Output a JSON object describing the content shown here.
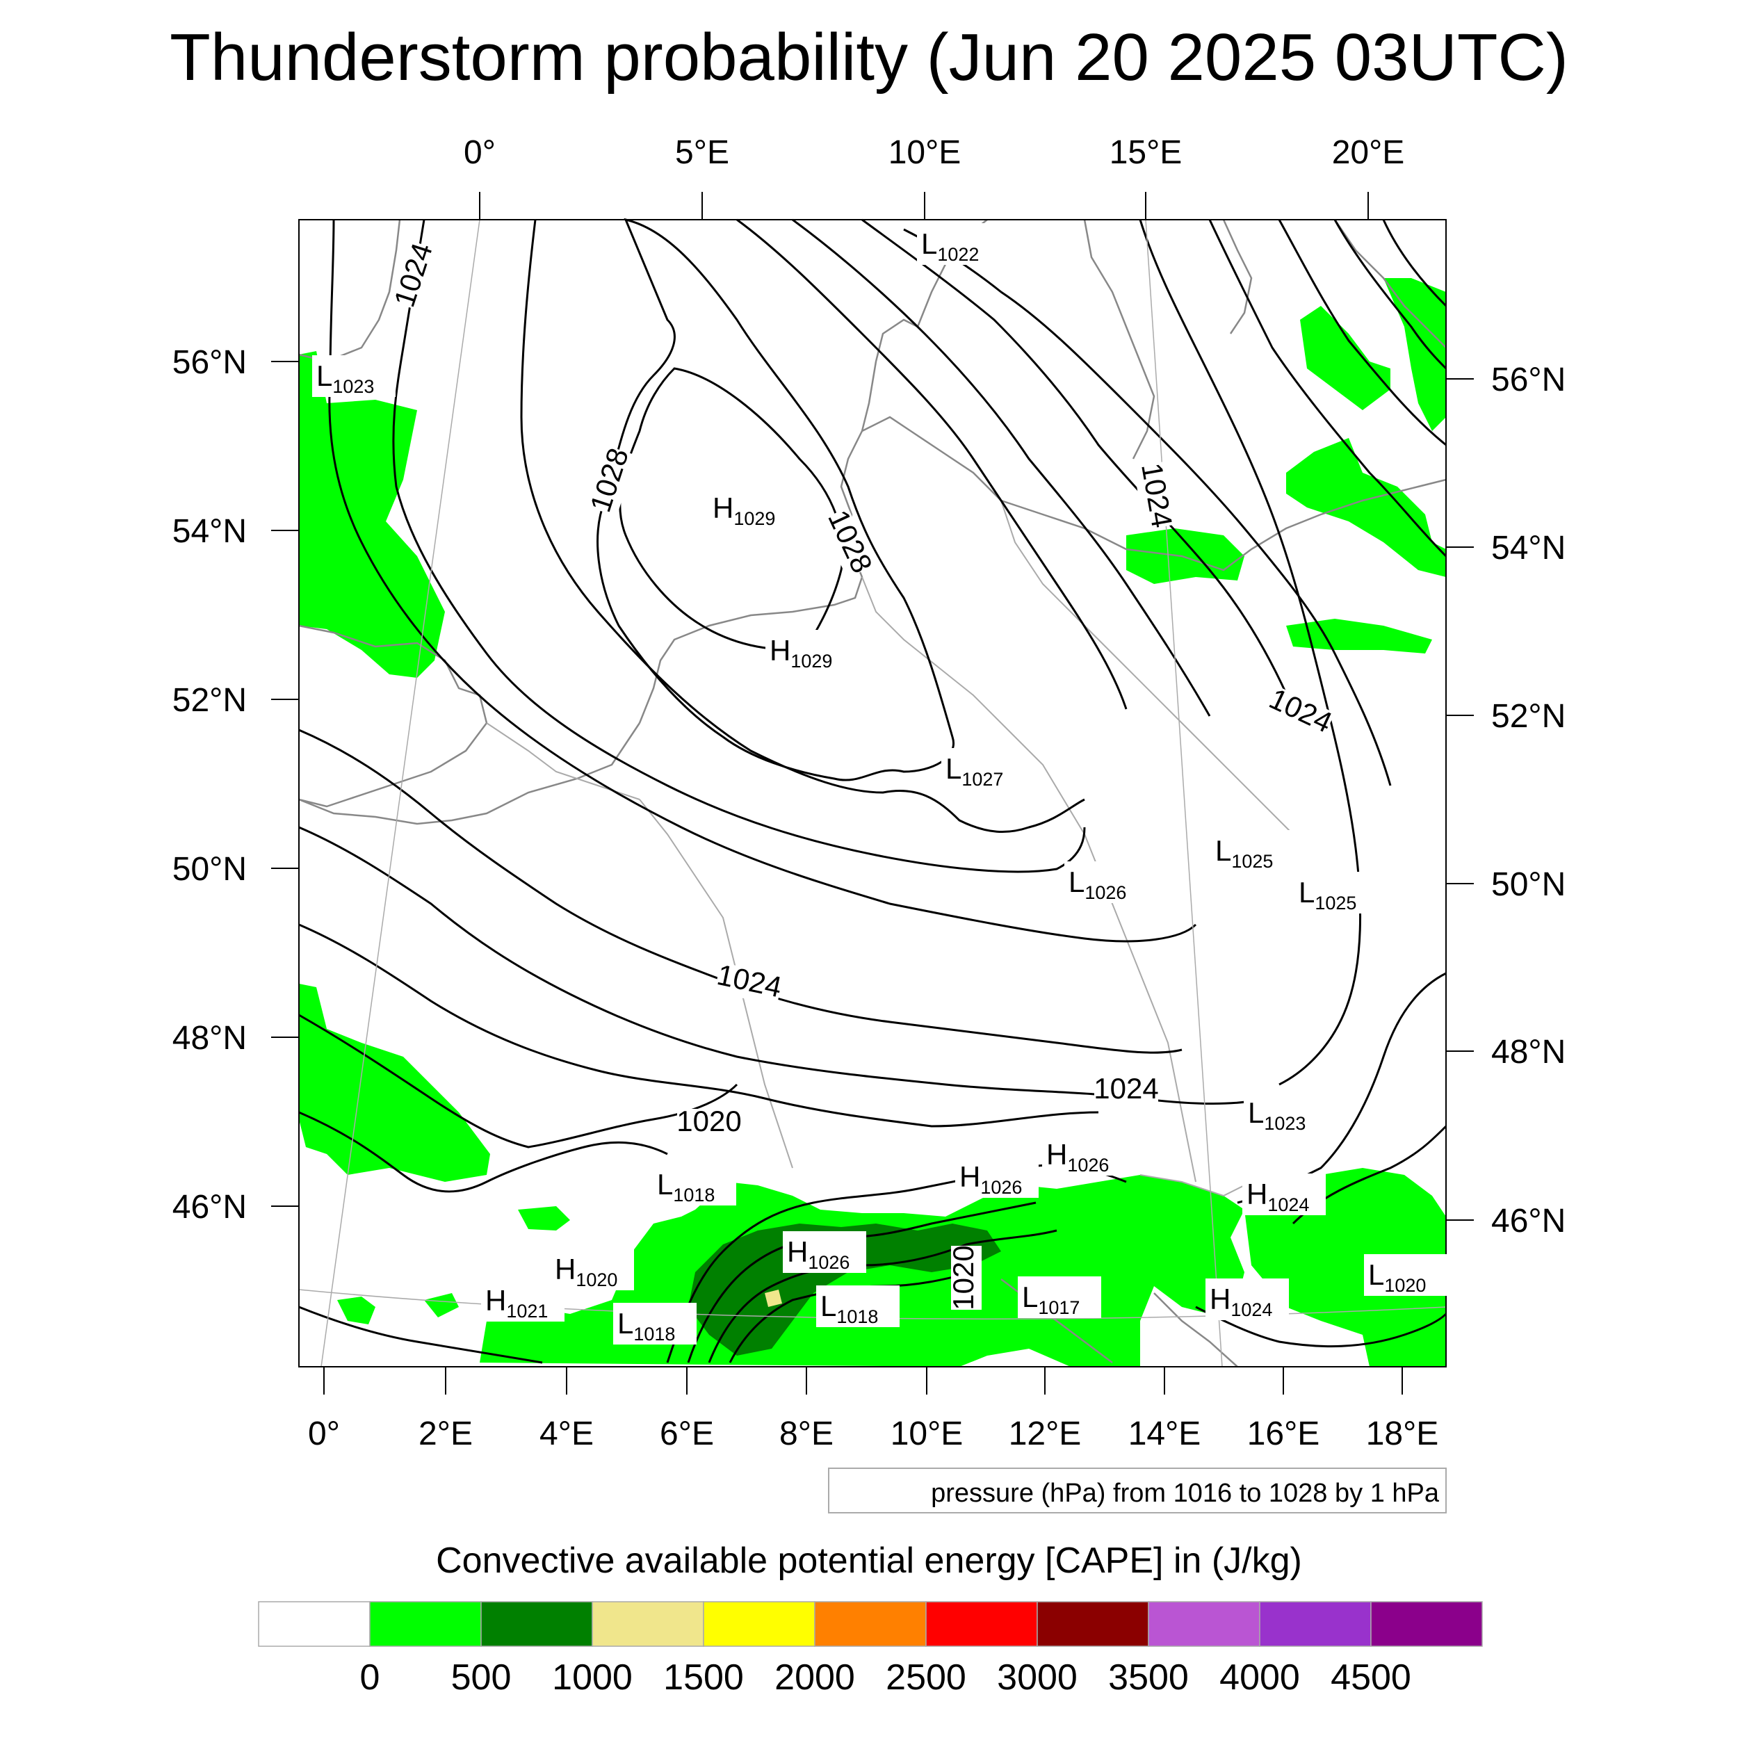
{
  "title": "Thunderstorm probability (Jun 20 2025 03UTC)",
  "map": {
    "top_lon_labels": [
      "0°",
      "5°E",
      "10°E",
      "15°E",
      "20°E"
    ],
    "bottom_lon_labels": [
      "0°",
      "2°E",
      "4°E",
      "6°E",
      "8°E",
      "10°E",
      "12°E",
      "14°E",
      "16°E",
      "18°E"
    ],
    "left_lat_labels": [
      "56°N",
      "54°N",
      "52°N",
      "50°N",
      "48°N",
      "46°N"
    ],
    "right_lat_labels": [
      "56°N",
      "54°N",
      "52°N",
      "50°N",
      "48°N",
      "46°N"
    ],
    "pressure_centers": [
      {
        "type": "L",
        "value": "1022"
      },
      {
        "type": "L",
        "value": "1023"
      },
      {
        "type": "H",
        "value": "1029"
      },
      {
        "type": "H",
        "value": "1029"
      },
      {
        "type": "L",
        "value": "1027"
      },
      {
        "type": "L",
        "value": "1025"
      },
      {
        "type": "L",
        "value": "1026"
      },
      {
        "type": "L",
        "value": "1025"
      },
      {
        "type": "L",
        "value": "1023"
      },
      {
        "type": "H",
        "value": "1026"
      },
      {
        "type": "L",
        "value": "1018"
      },
      {
        "type": "H",
        "value": "1026"
      },
      {
        "type": "H",
        "value": "1024"
      },
      {
        "type": "H",
        "value": "1026"
      },
      {
        "type": "H",
        "value": "1020"
      },
      {
        "type": "L",
        "value": "1018"
      },
      {
        "type": "L",
        "value": "1017"
      },
      {
        "type": "H",
        "value": "1024"
      },
      {
        "type": "L",
        "value": "1020"
      },
      {
        "type": "H",
        "value": "1021"
      },
      {
        "type": "L",
        "value": "1018"
      }
    ],
    "contour_labels": [
      "1024",
      "1028",
      "1028",
      "1024",
      "1024",
      "1024",
      "1024",
      "1020",
      "1020"
    ],
    "isobar_info": "pressure (hPa) from 1016 to 1028 by 1 hPa"
  },
  "colorbar": {
    "title": "Convective available potential energy [CAPE] in (J/kg)",
    "colors": [
      "#ffffff",
      "#00ff00",
      "#008000",
      "#f0e68c",
      "#ffff00",
      "#ff8000",
      "#ff0000",
      "#8b0000",
      "#ba55d3",
      "#9932cc",
      "#8b008b"
    ],
    "labels": [
      "0",
      "500",
      "1000",
      "1500",
      "2000",
      "2500",
      "3000",
      "3500",
      "4000",
      "4500"
    ]
  }
}
